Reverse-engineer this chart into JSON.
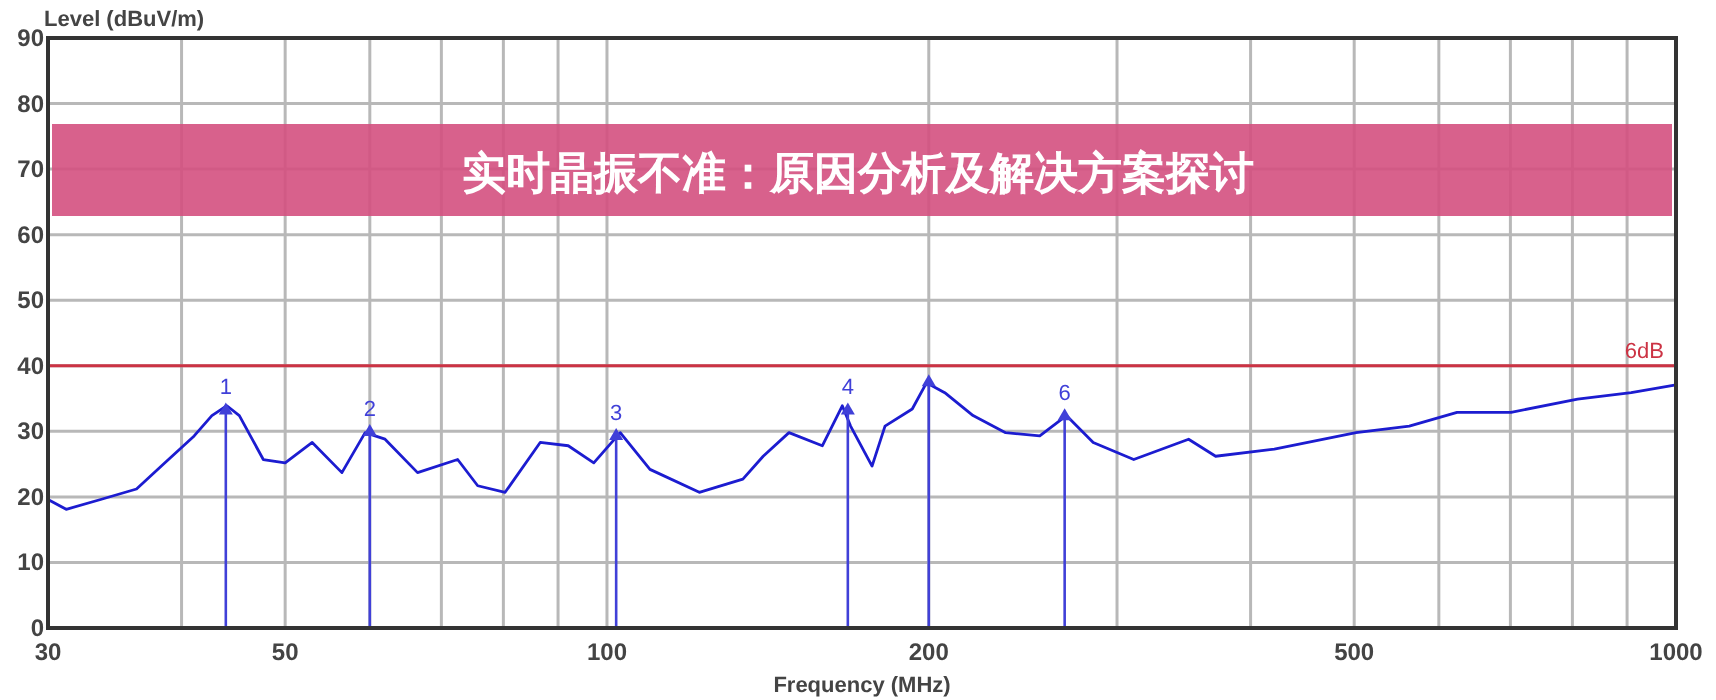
{
  "chart_data": {
    "type": "line",
    "title": "实时晶振不准：原因分析及解决方案探讨",
    "xlabel": "Frequency (MHz)",
    "ylabel": "Level (dBuV/m)",
    "log": "x",
    "grid": true,
    "xlim": [
      30,
      1000
    ],
    "xticks": [
      30,
      {
        "value": 40,
        "label": null
      },
      50,
      {
        "value": 60,
        "label": null
      },
      {
        "value": 70,
        "label": null
      },
      {
        "value": 80,
        "label": null
      },
      {
        "value": 90,
        "label": null
      },
      100,
      200,
      {
        "value": 300,
        "label": null
      },
      {
        "value": 400,
        "label": null
      },
      500,
      {
        "value": 600,
        "label": null
      },
      {
        "value": 700,
        "label": null
      },
      {
        "value": 800,
        "label": null
      },
      {
        "value": 900,
        "label": null
      },
      1000
    ],
    "ylim": [
      0,
      90
    ],
    "yticks": [
      0,
      10,
      20,
      30,
      40,
      50,
      60,
      70,
      80,
      90
    ],
    "series": [
      {
        "color": "#1c1cd0",
        "x": [
          30,
          31.2,
          33.6,
          36.3,
          38.3,
          41.1,
          42.7,
          44.1,
          45.3,
          47.7,
          50,
          53,
          56.5,
          59.4,
          62,
          66.5,
          72.5,
          75.7,
          80.3,
          86.6,
          92,
          97.2,
          102.9,
          109.7,
          122,
          134,
          140,
          148,
          159,
          166,
          169,
          177,
          182,
          193,
          199,
          207,
          220,
          236,
          254,
          269,
          285,
          311,
          350,
          371,
          421,
          502,
          563,
          624,
          701,
          809,
          908,
          1000
        ],
        "values": [
          19.6,
          18.1,
          19.6,
          21.2,
          24.7,
          29.3,
          32.4,
          33.9,
          32.4,
          25.7,
          25.2,
          28.3,
          23.7,
          29.8,
          28.8,
          23.7,
          25.7,
          21.7,
          20.7,
          28.3,
          27.8,
          25.2,
          29.8,
          24.2,
          20.7,
          22.7,
          26.2,
          29.8,
          27.8,
          33.9,
          30.8,
          24.7,
          30.8,
          33.4,
          37.4,
          35.9,
          32.4,
          29.8,
          29.3,
          32.4,
          28.3,
          25.7,
          28.8,
          26.2,
          27.3,
          29.8,
          30.8,
          32.9,
          32.9,
          34.9,
          35.9,
          37.1
        ]
      },
      {
        "type": "lollipop",
        "color": "#4040d8",
        "marker": "triangle",
        "x": [
          44,
          60,
          102,
          168,
          200,
          268
        ],
        "values": [
          33.5,
          30.2,
          29.6,
          33.5,
          37.8,
          32.6
        ]
      }
    ],
    "annotations": [
      {
        "text": "1",
        "x": 44,
        "y": 33.5
      },
      {
        "text": "2",
        "x": 60,
        "y": 30.2
      },
      {
        "text": "3",
        "x": 102,
        "y": 29.6
      },
      {
        "text": "4",
        "x": 168,
        "y": 33.5
      },
      {
        "text": "6",
        "x": 268,
        "y": 32.6
      }
    ],
    "ref_lines": [
      {
        "axis": "y",
        "value": 40,
        "label": "6dB",
        "color": "#cc3344"
      }
    ]
  }
}
